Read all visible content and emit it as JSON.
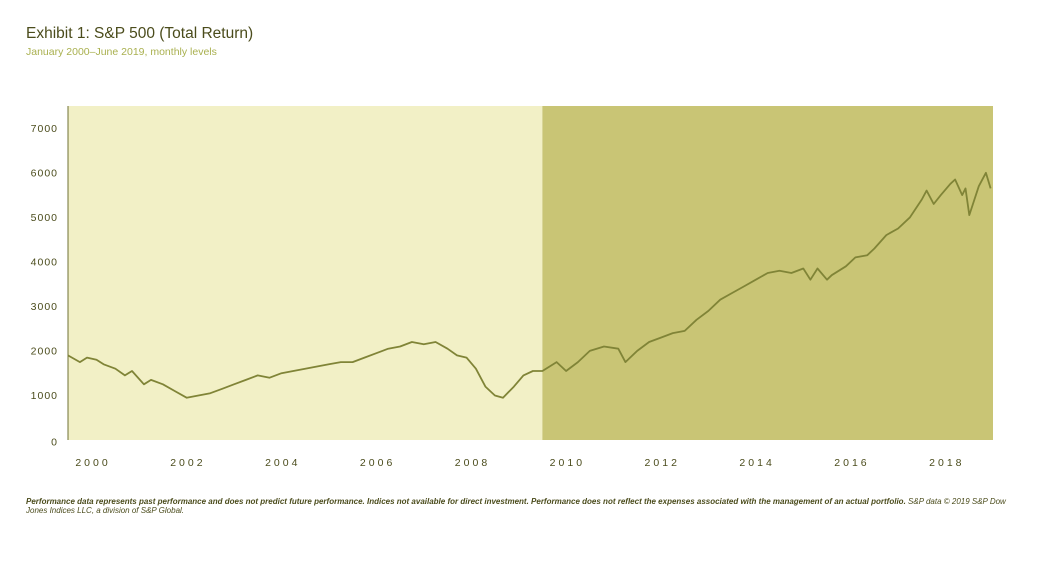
{
  "title": "Exhibit 1: S&P 500 (Total Return)",
  "subtitle": "January 2000–June 2019, monthly levels",
  "footnote": {
    "bold": "Performance data represents past performance and does not predict future performance.  Indices not available for direct investment. Performance does  not reflect the expenses associated with the management of an actual portfolio.",
    "regular": " S&P data © 2019 S&P Dow Jones Indices LLC, a division of S&P Global."
  },
  "colors": {
    "background_before": "#f2f0c6",
    "background_after": "#c9c575",
    "line": "#808437",
    "text": "#4b4c1c",
    "subtitle": "#a9b04f"
  },
  "chart_data": {
    "type": "line",
    "title": "Exhibit 1: S&P 500 (Total Return)",
    "subtitle": "January 2000–June 2019, monthly levels",
    "xlabel": "",
    "ylabel": "",
    "xlim": [
      2000.0,
      2019.5
    ],
    "ylim": [
      0,
      7500
    ],
    "yticks": [
      "0",
      "1000",
      "2000",
      "3000",
      "4000",
      "5000",
      "6000",
      "7000"
    ],
    "xticks": [
      "2000",
      "2002",
      "2004",
      "2006",
      "2008",
      "2010",
      "2012",
      "2014",
      "2016",
      "2018"
    ],
    "grid": false,
    "shaded_regions": [
      {
        "from": 2000.0,
        "to": 2010.0
      },
      {
        "from": 2010.0,
        "to": 2019.5
      }
    ],
    "series": [
      {
        "x": [
          2000.0,
          2000.25,
          2000.4,
          2000.6,
          2000.75,
          2001.0,
          2001.2,
          2001.35,
          2001.6,
          2001.75,
          2002.0,
          2002.25,
          2002.5,
          2002.75,
          2003.0,
          2003.25,
          2003.5,
          2003.75,
          2004.0,
          2004.25,
          2004.5,
          2004.75,
          2005.0,
          2005.25,
          2005.5,
          2005.75,
          2006.0,
          2006.25,
          2006.5,
          2006.75,
          2007.0,
          2007.25,
          2007.5,
          2007.75,
          2008.0,
          2008.2,
          2008.4,
          2008.6,
          2008.8,
          2009.0,
          2009.17,
          2009.4,
          2009.6,
          2009.8,
          2010.0,
          2010.3,
          2010.5,
          2010.75,
          2011.0,
          2011.3,
          2011.6,
          2011.75,
          2012.0,
          2012.25,
          2012.5,
          2012.75,
          2013.0,
          2013.25,
          2013.5,
          2013.75,
          2014.0,
          2014.25,
          2014.5,
          2014.75,
          2015.0,
          2015.25,
          2015.5,
          2015.65,
          2015.8,
          2016.0,
          2016.1,
          2016.4,
          2016.6,
          2016.85,
          2017.0,
          2017.25,
          2017.5,
          2017.75,
          2018.0,
          2018.1,
          2018.25,
          2018.4,
          2018.6,
          2018.7,
          2018.85,
          2018.92,
          2019.0,
          2019.2,
          2019.35,
          2019.45
        ],
        "y": [
          1900,
          1750,
          1850,
          1800,
          1700,
          1600,
          1450,
          1550,
          1250,
          1350,
          1250,
          1100,
          950,
          1000,
          1050,
          1150,
          1250,
          1350,
          1450,
          1400,
          1500,
          1550,
          1600,
          1650,
          1700,
          1750,
          1750,
          1850,
          1950,
          2050,
          2100,
          2200,
          2150,
          2200,
          2050,
          1900,
          1850,
          1600,
          1200,
          1000,
          950,
          1200,
          1450,
          1550,
          1550,
          1750,
          1550,
          1750,
          2000,
          2100,
          2050,
          1750,
          2000,
          2200,
          2300,
          2400,
          2450,
          2700,
          2900,
          3150,
          3300,
          3450,
          3600,
          3750,
          3800,
          3750,
          3850,
          3600,
          3850,
          3600,
          3700,
          3900,
          4100,
          4150,
          4300,
          4600,
          4750,
          5000,
          5400,
          5600,
          5300,
          5500,
          5750,
          5850,
          5500,
          5650,
          5050,
          5700,
          6000,
          5650
        ]
      }
    ]
  }
}
